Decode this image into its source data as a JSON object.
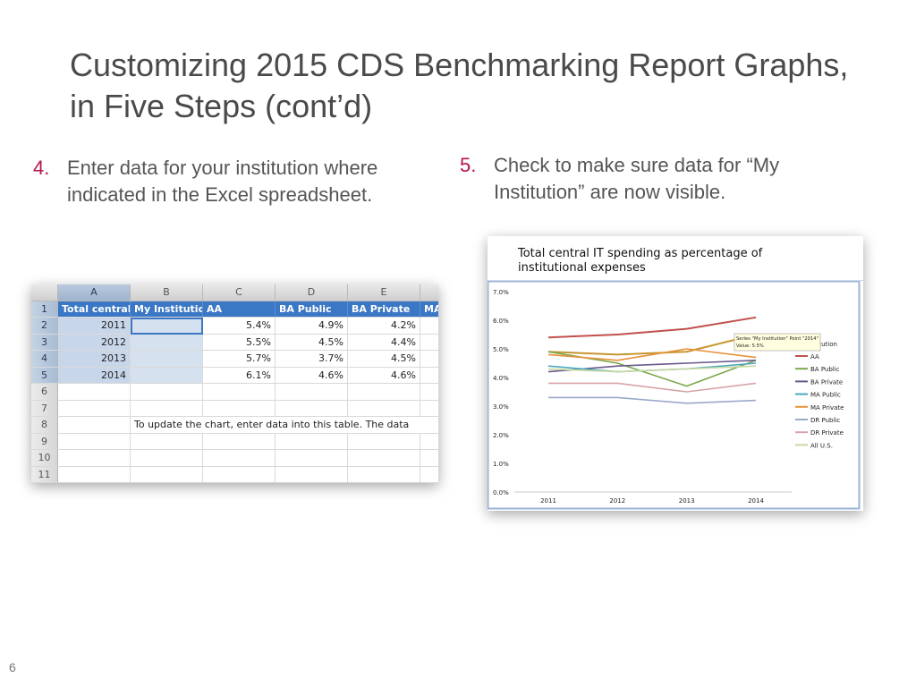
{
  "slide": {
    "title": "Customizing 2015 CDS Benchmarking Report Graphs, in Five Steps (cont’d)",
    "page_number": "6"
  },
  "steps": [
    {
      "number": "4.",
      "text": "Enter data for your institution where indicated in the Excel spreadsheet."
    },
    {
      "number": "5.",
      "text": "Check to make sure data for “My Institution” are now visible."
    }
  ],
  "spreadsheet": {
    "column_letters": [
      "A",
      "B",
      "C",
      "D",
      "E",
      ""
    ],
    "row_numbers": [
      "1",
      "2",
      "3",
      "4",
      "5",
      "6",
      "7",
      "8",
      "9",
      "10",
      "11"
    ],
    "header_row": [
      "Total central",
      "My Institutio",
      "AA",
      "BA Public",
      "BA Private",
      "MA"
    ],
    "data_rows": [
      {
        "year": "2011",
        "mine": "",
        "aa": "5.4%",
        "ba_public": "4.9%",
        "ba_private": "4.2%"
      },
      {
        "year": "2012",
        "mine": "",
        "aa": "5.5%",
        "ba_public": "4.5%",
        "ba_private": "4.4%"
      },
      {
        "year": "2013",
        "mine": "",
        "aa": "5.7%",
        "ba_public": "3.7%",
        "ba_private": "4.5%"
      },
      {
        "year": "2014",
        "mine": "",
        "aa": "6.1%",
        "ba_public": "4.6%",
        "ba_private": "4.6%"
      }
    ],
    "note": "To update the chart, enter data into this table. The data",
    "colors": {
      "header_fill": "#3a77c4",
      "year_fill": "#c8d6ea"
    }
  },
  "chart_data": {
    "type": "line",
    "title": "Total central IT spending as percentage of institutional expenses",
    "categories": [
      "2011",
      "2012",
      "2013",
      "2014"
    ],
    "ytick_labels": [
      "0.0%",
      "1.0%",
      "2.0%",
      "3.0%",
      "4.0%",
      "5.0%",
      "6.0%",
      "7.0%"
    ],
    "ylim": [
      0,
      7
    ],
    "grid": false,
    "legend_position": "right",
    "tooltip": [
      "Series \"My Institution\" Point \"2014\"",
      "Value: 5.5%"
    ],
    "legend_partial_label": "stitution",
    "series": [
      {
        "name": "My Institution",
        "color": "#c8952e",
        "values": [
          4.9,
          4.8,
          4.9,
          5.5
        ],
        "in_legend": false
      },
      {
        "name": "AA",
        "color": "#c0504d",
        "values": [
          5.4,
          5.5,
          5.7,
          6.1
        ],
        "in_legend": true
      },
      {
        "name": "BA Public",
        "color": "#7aa84b",
        "values": [
          4.9,
          4.5,
          3.7,
          4.6
        ],
        "in_legend": true
      },
      {
        "name": "BA Private",
        "color": "#6a5a8c",
        "values": [
          4.2,
          4.4,
          4.5,
          4.6
        ],
        "in_legend": true
      },
      {
        "name": "MA Public",
        "color": "#4aa8c0",
        "values": [
          4.4,
          4.2,
          4.3,
          4.5
        ],
        "in_legend": true
      },
      {
        "name": "MA Private",
        "color": "#e8913a",
        "values": [
          4.8,
          4.6,
          5.0,
          4.7
        ],
        "in_legend": true
      },
      {
        "name": "DR Public",
        "color": "#9aa9c9",
        "values": [
          3.3,
          3.3,
          3.1,
          3.2
        ],
        "in_legend": true
      },
      {
        "name": "DR Private",
        "color": "#d8a3a8",
        "values": [
          3.8,
          3.8,
          3.5,
          3.8
        ],
        "in_legend": true
      },
      {
        "name": "All U.S.",
        "color": "#c7d9a1",
        "values": [
          4.3,
          4.2,
          4.3,
          4.4
        ],
        "in_legend": true
      }
    ]
  }
}
